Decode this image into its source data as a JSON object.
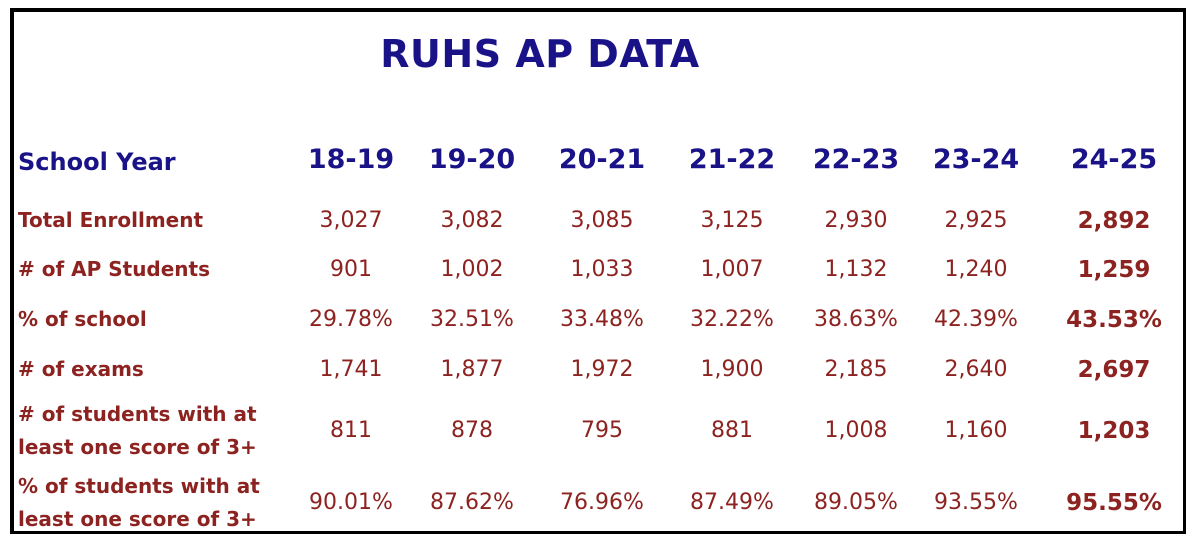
{
  "chart_data": {
    "type": "table",
    "title": "RUHS AP DATA",
    "header_label": "School Year",
    "columns": [
      "18-19",
      "19-20",
      "20-21",
      "21-22",
      "22-23",
      "23-24",
      "24-25"
    ],
    "rows": [
      {
        "label": "Total Enrollment",
        "values": [
          "3,027",
          "3,082",
          "3,085",
          "3,125",
          "2,930",
          "2,925",
          "2,892"
        ]
      },
      {
        "label": "# of AP Students",
        "values": [
          "901",
          "1,002",
          "1,033",
          "1,007",
          "1,132",
          "1,240",
          "1,259"
        ]
      },
      {
        "label": "% of school",
        "values": [
          "29.78%",
          "32.51%",
          "33.48%",
          "32.22%",
          "38.63%",
          "42.39%",
          "43.53%"
        ]
      },
      {
        "label": "# of exams",
        "values": [
          "1,741",
          "1,877",
          "1,972",
          "1,900",
          "2,185",
          "2,640",
          "2,697"
        ]
      },
      {
        "label": "# of students with at least one score of 3+",
        "label_lines": [
          "# of students with at",
          "least one score of 3+"
        ],
        "values": [
          "811",
          "878",
          "795",
          "881",
          "1,008",
          "1,160",
          "1,203"
        ]
      },
      {
        "label": "% of students with at least one score of 3+",
        "label_lines": [
          "% of students with at",
          "least one score of 3+"
        ],
        "values": [
          "90.01%",
          "87.62%",
          "76.96%",
          "87.49%",
          "89.05%",
          "93.55%",
          "95.55%"
        ]
      }
    ]
  },
  "colors": {
    "title": "#1a1388",
    "header": "#1a1388",
    "body_text": "#8c2320"
  }
}
